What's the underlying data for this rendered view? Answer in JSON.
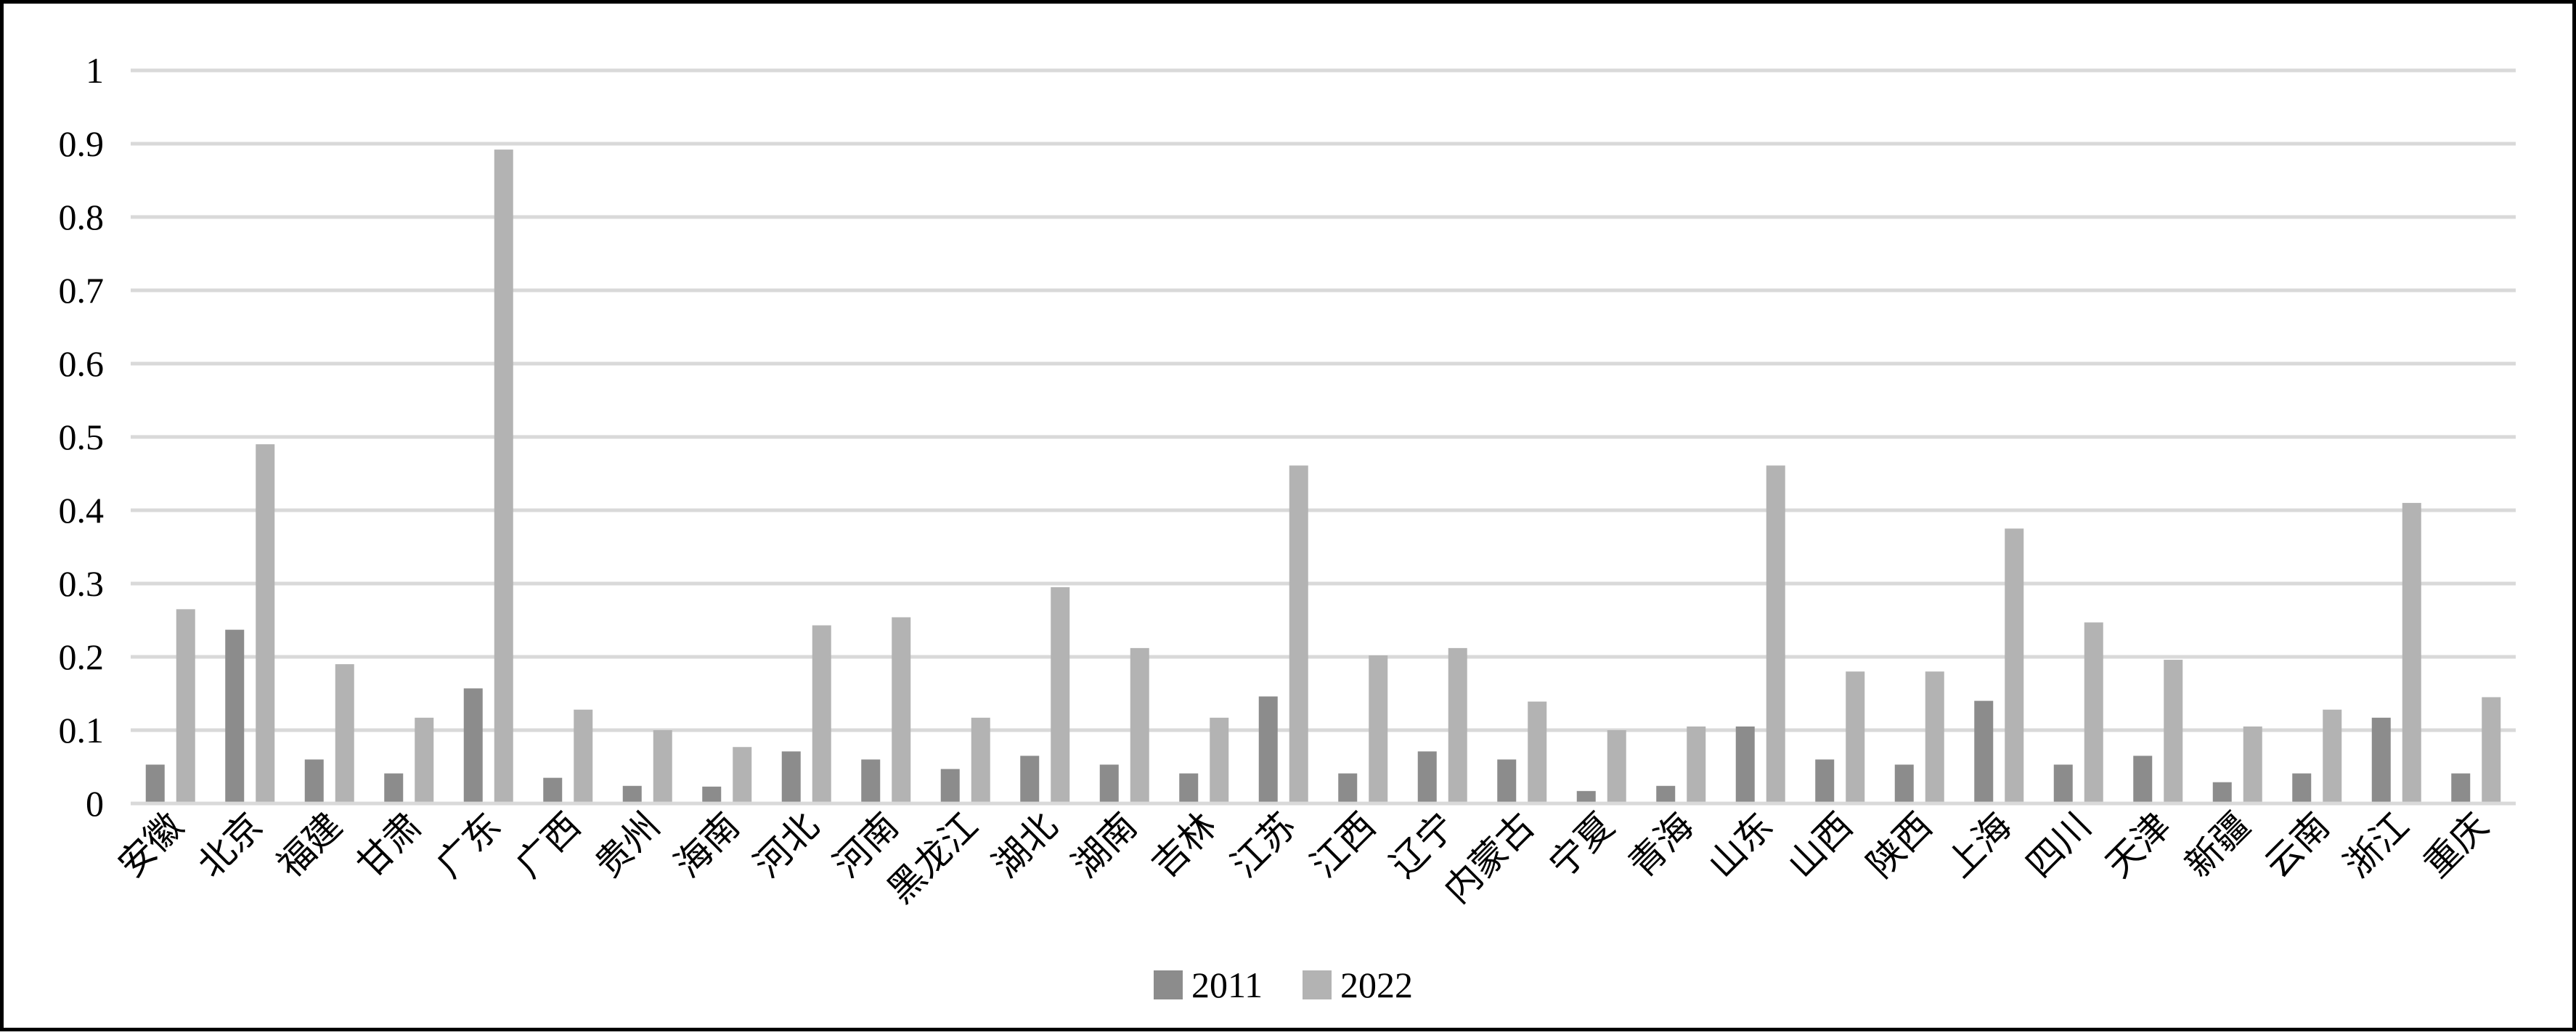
{
  "chart_data": {
    "type": "bar",
    "categories": [
      "安徽",
      "北京",
      "福建",
      "甘肃",
      "广东",
      "广西",
      "贵州",
      "海南",
      "河北",
      "河南",
      "黑龙江",
      "湖北",
      "湖南",
      "吉林",
      "江苏",
      "江西",
      "辽宁",
      "内蒙古",
      "宁夏",
      "青海",
      "山东",
      "山西",
      "陕西",
      "上海",
      "四川",
      "天津",
      "新疆",
      "云南",
      "浙江",
      "重庆"
    ],
    "series": [
      {
        "name": "2011",
        "color": "#8c8c8c",
        "values": [
          0.053,
          0.237,
          0.06,
          0.041,
          0.157,
          0.035,
          0.024,
          0.023,
          0.071,
          0.06,
          0.047,
          0.065,
          0.053,
          0.041,
          0.146,
          0.041,
          0.071,
          0.06,
          0.017,
          0.024,
          0.105,
          0.06,
          0.053,
          0.14,
          0.053,
          0.065,
          0.029,
          0.041,
          0.117,
          0.041
        ]
      },
      {
        "name": "2022",
        "color": "#b3b3b3",
        "values": [
          0.265,
          0.49,
          0.19,
          0.117,
          0.892,
          0.128,
          0.1,
          0.077,
          0.243,
          0.254,
          0.117,
          0.295,
          0.212,
          0.117,
          0.461,
          0.202,
          0.212,
          0.139,
          0.1,
          0.105,
          0.461,
          0.18,
          0.18,
          0.375,
          0.247,
          0.196,
          0.105,
          0.128,
          0.41,
          0.145
        ]
      }
    ],
    "ylim": [
      0,
      1
    ],
    "y_ticks": [
      "0",
      "0.1",
      "0.2",
      "0.3",
      "0.4",
      "0.5",
      "0.6",
      "0.7",
      "0.8",
      "0.9",
      "1"
    ],
    "grid": true,
    "gridline_color": "#d9d9d9",
    "legend_position": "bottom-center",
    "title": "",
    "xlabel": "",
    "ylabel": ""
  }
}
